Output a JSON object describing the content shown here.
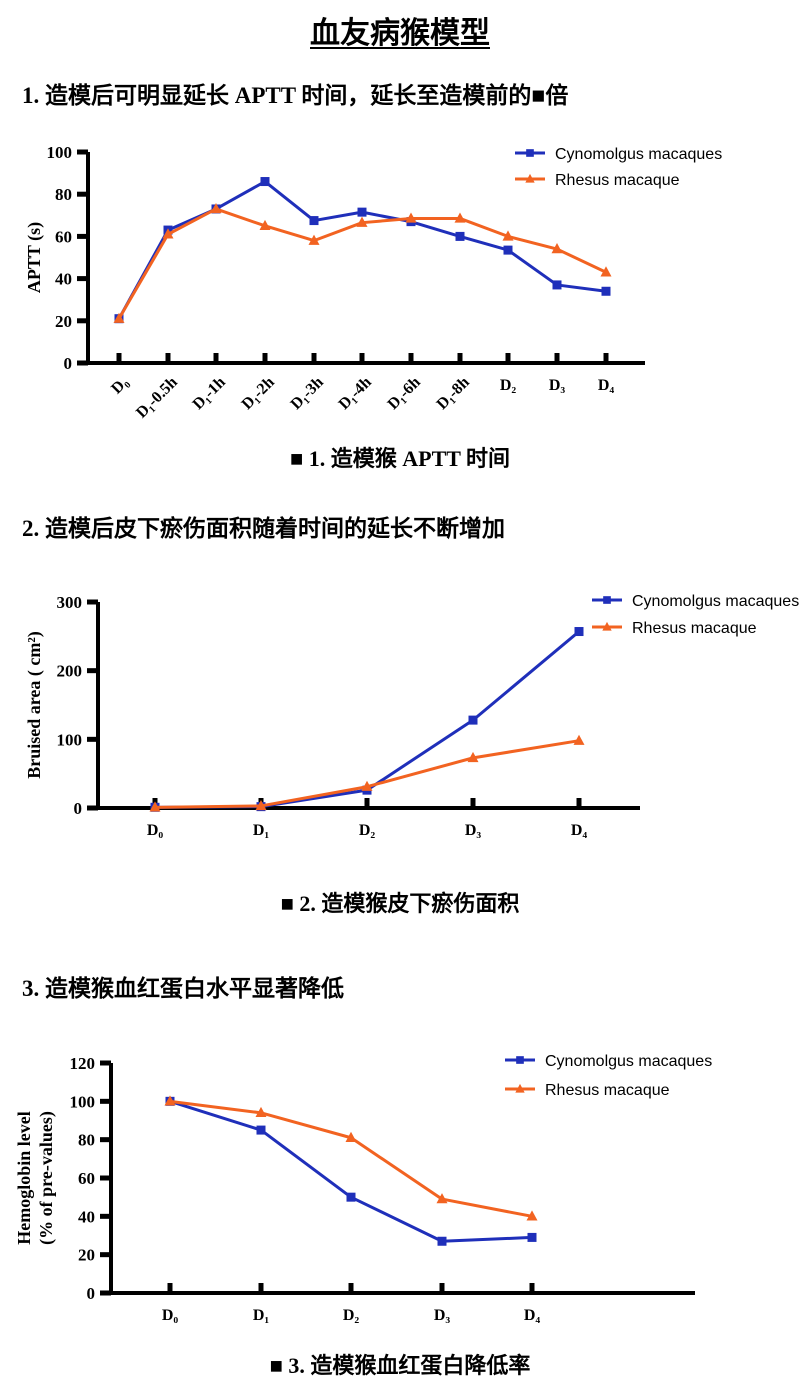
{
  "page": {
    "title": "血友病猴模型",
    "sections": [
      {
        "heading": "1.  造模后可明显延长 APTT 时间，延长至造模前的■倍",
        "caption": "■ 1.  造模猴 APTT 时间"
      },
      {
        "heading": "2.  造模后皮下瘀伤面积随着时间的延长不断增加",
        "caption": "■ 2.  造模猴皮下瘀伤面积"
      },
      {
        "heading": "3.  造模猴血红蛋白水平显著降低",
        "caption": "■ 3.  造模猴血红蛋白降低率"
      }
    ]
  },
  "colors": {
    "cynomolgus_blue": "#1f2fba",
    "rhesus_orange": "#f26321",
    "axis_black": "#000000"
  },
  "chart_data": [
    {
      "name": "aptt",
      "type": "line",
      "title": "",
      "xlabel": "",
      "ylabel": [
        "APTT (s)"
      ],
      "categories": [
        "D₀",
        "D₁-0.5h",
        "D₁-1h",
        "D₁-2h",
        "D₁-3h",
        "D₁-4h",
        "D₁-6h",
        "D₁-8h",
        "D₂",
        "D₃",
        "D₄"
      ],
      "series": [
        {
          "name": "Cynomolgus macaques",
          "color": "#1f2fba",
          "marker": "square",
          "values": [
            21,
            63,
            73,
            86,
            67.5,
            71.5,
            67,
            60,
            53.5,
            37,
            34
          ]
        },
        {
          "name": "Rhesus macaque",
          "color": "#f26321",
          "marker": "triangle",
          "values": [
            21,
            61,
            73,
            65,
            58,
            66.5,
            68.5,
            68.5,
            60,
            54,
            43
          ]
        }
      ],
      "ylim": [
        0,
        100
      ],
      "yticks": [
        0,
        20,
        40,
        60,
        80,
        100
      ],
      "x_tick_rotation": [
        45,
        45,
        45,
        45,
        45,
        45,
        45,
        45,
        0,
        0,
        0
      ],
      "grid": false,
      "legend_position": "top-right"
    },
    {
      "name": "bruised-area",
      "type": "line",
      "title": "",
      "xlabel": "",
      "ylabel": [
        "Bruised area ( cm²)"
      ],
      "categories": [
        "D₀",
        "D₁",
        "D₂",
        "D₃",
        "D₄"
      ],
      "series": [
        {
          "name": "Cynomolgus macaques",
          "color": "#1f2fba",
          "marker": "square",
          "values": [
            1,
            2,
            26,
            128,
            257
          ]
        },
        {
          "name": "Rhesus macaque",
          "color": "#f26321",
          "marker": "triangle",
          "values": [
            1,
            3,
            31,
            73,
            98
          ]
        }
      ],
      "ylim": [
        0,
        300
      ],
      "yticks": [
        0,
        100,
        200,
        300
      ],
      "grid": false,
      "legend_position": "top-right"
    },
    {
      "name": "hemoglobin",
      "type": "line",
      "title": "",
      "xlabel": "",
      "ylabel": [
        "Hemoglobin level",
        "(% of pre-values)"
      ],
      "categories": [
        "D₀",
        "D₁",
        "D₂",
        "D₃",
        "D₄"
      ],
      "series": [
        {
          "name": "Cynomolgus macaques",
          "color": "#1f2fba",
          "marker": "square",
          "values": [
            100,
            85,
            50,
            27,
            29
          ]
        },
        {
          "name": "Rhesus macaque",
          "color": "#f26321",
          "marker": "triangle",
          "values": [
            100,
            94,
            81,
            49,
            40
          ]
        }
      ],
      "ylim": [
        0,
        120
      ],
      "yticks": [
        0,
        20,
        40,
        60,
        80,
        100,
        120
      ],
      "grid": false,
      "legend_position": "top-right"
    }
  ]
}
